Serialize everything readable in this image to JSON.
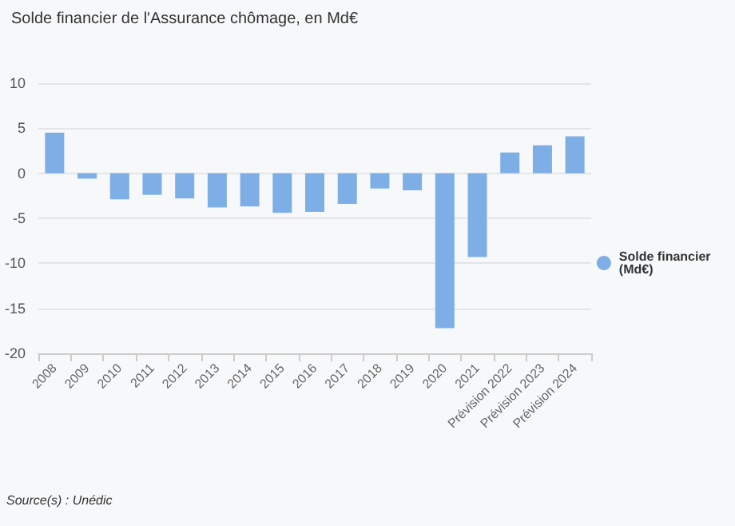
{
  "chart_data": {
    "type": "bar",
    "title": "Solde financier de l'Assurance chômage, en Md€",
    "categories": [
      "2008",
      "2009",
      "2010",
      "2011",
      "2012",
      "2013",
      "2014",
      "2015",
      "2016",
      "2017",
      "2018",
      "2019",
      "2020",
      "2021",
      "Prévision 2022",
      "Prévision 2023",
      "Prévision 2024"
    ],
    "series": [
      {
        "name": "Solde financier (Md€)",
        "color": "#7eaee6",
        "values": [
          4.5,
          -0.6,
          -2.9,
          -2.4,
          -2.8,
          -3.8,
          -3.7,
          -4.4,
          -4.3,
          -3.4,
          -1.7,
          -1.9,
          -17.2,
          -9.3,
          2.3,
          3.1,
          4.1
        ]
      }
    ],
    "ylim": [
      -20,
      10
    ],
    "yticks": [
      -20,
      -15,
      -10,
      -5,
      0,
      5,
      10
    ],
    "grid": "y",
    "legend": "right",
    "annotations": [
      "Source(s) : Unédic"
    ]
  }
}
